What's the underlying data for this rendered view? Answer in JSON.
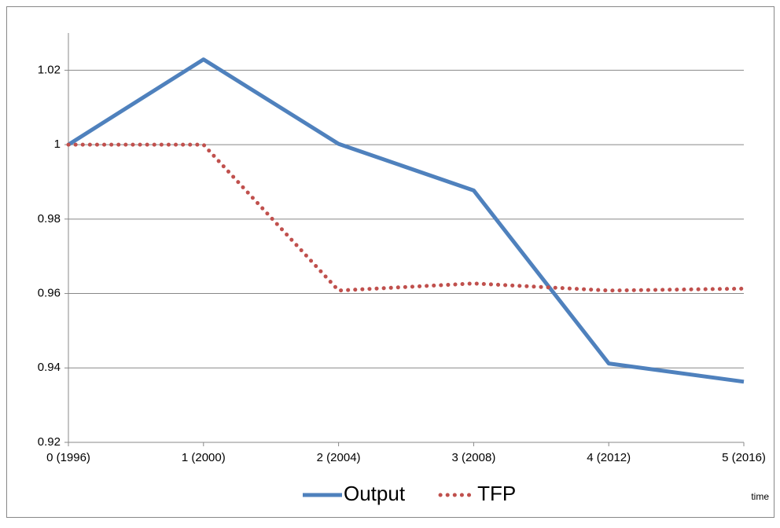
{
  "chart_data": {
    "type": "line",
    "categories": [
      "0 (1996)",
      "1 (2000)",
      "2 (2004)",
      "3 (2008)",
      "4 (2012)",
      "5 (2016)"
    ],
    "series": [
      {
        "name": "Output",
        "color": "#4f81bd",
        "style": "solid",
        "values": [
          1.0,
          1.0229,
          1.0002,
          0.9877,
          0.9412,
          0.9363
        ]
      },
      {
        "name": "TFP",
        "color": "#c0504d",
        "style": "dotted",
        "values": [
          1.0,
          1.0,
          0.9608,
          0.9627,
          0.9608,
          0.9613
        ]
      }
    ],
    "x_label": "time",
    "ylim": [
      0.92,
      1.03
    ],
    "yticks": [
      0.92,
      0.94,
      0.96,
      0.98,
      1,
      1.02
    ],
    "grid": true,
    "legend": "bottom"
  }
}
